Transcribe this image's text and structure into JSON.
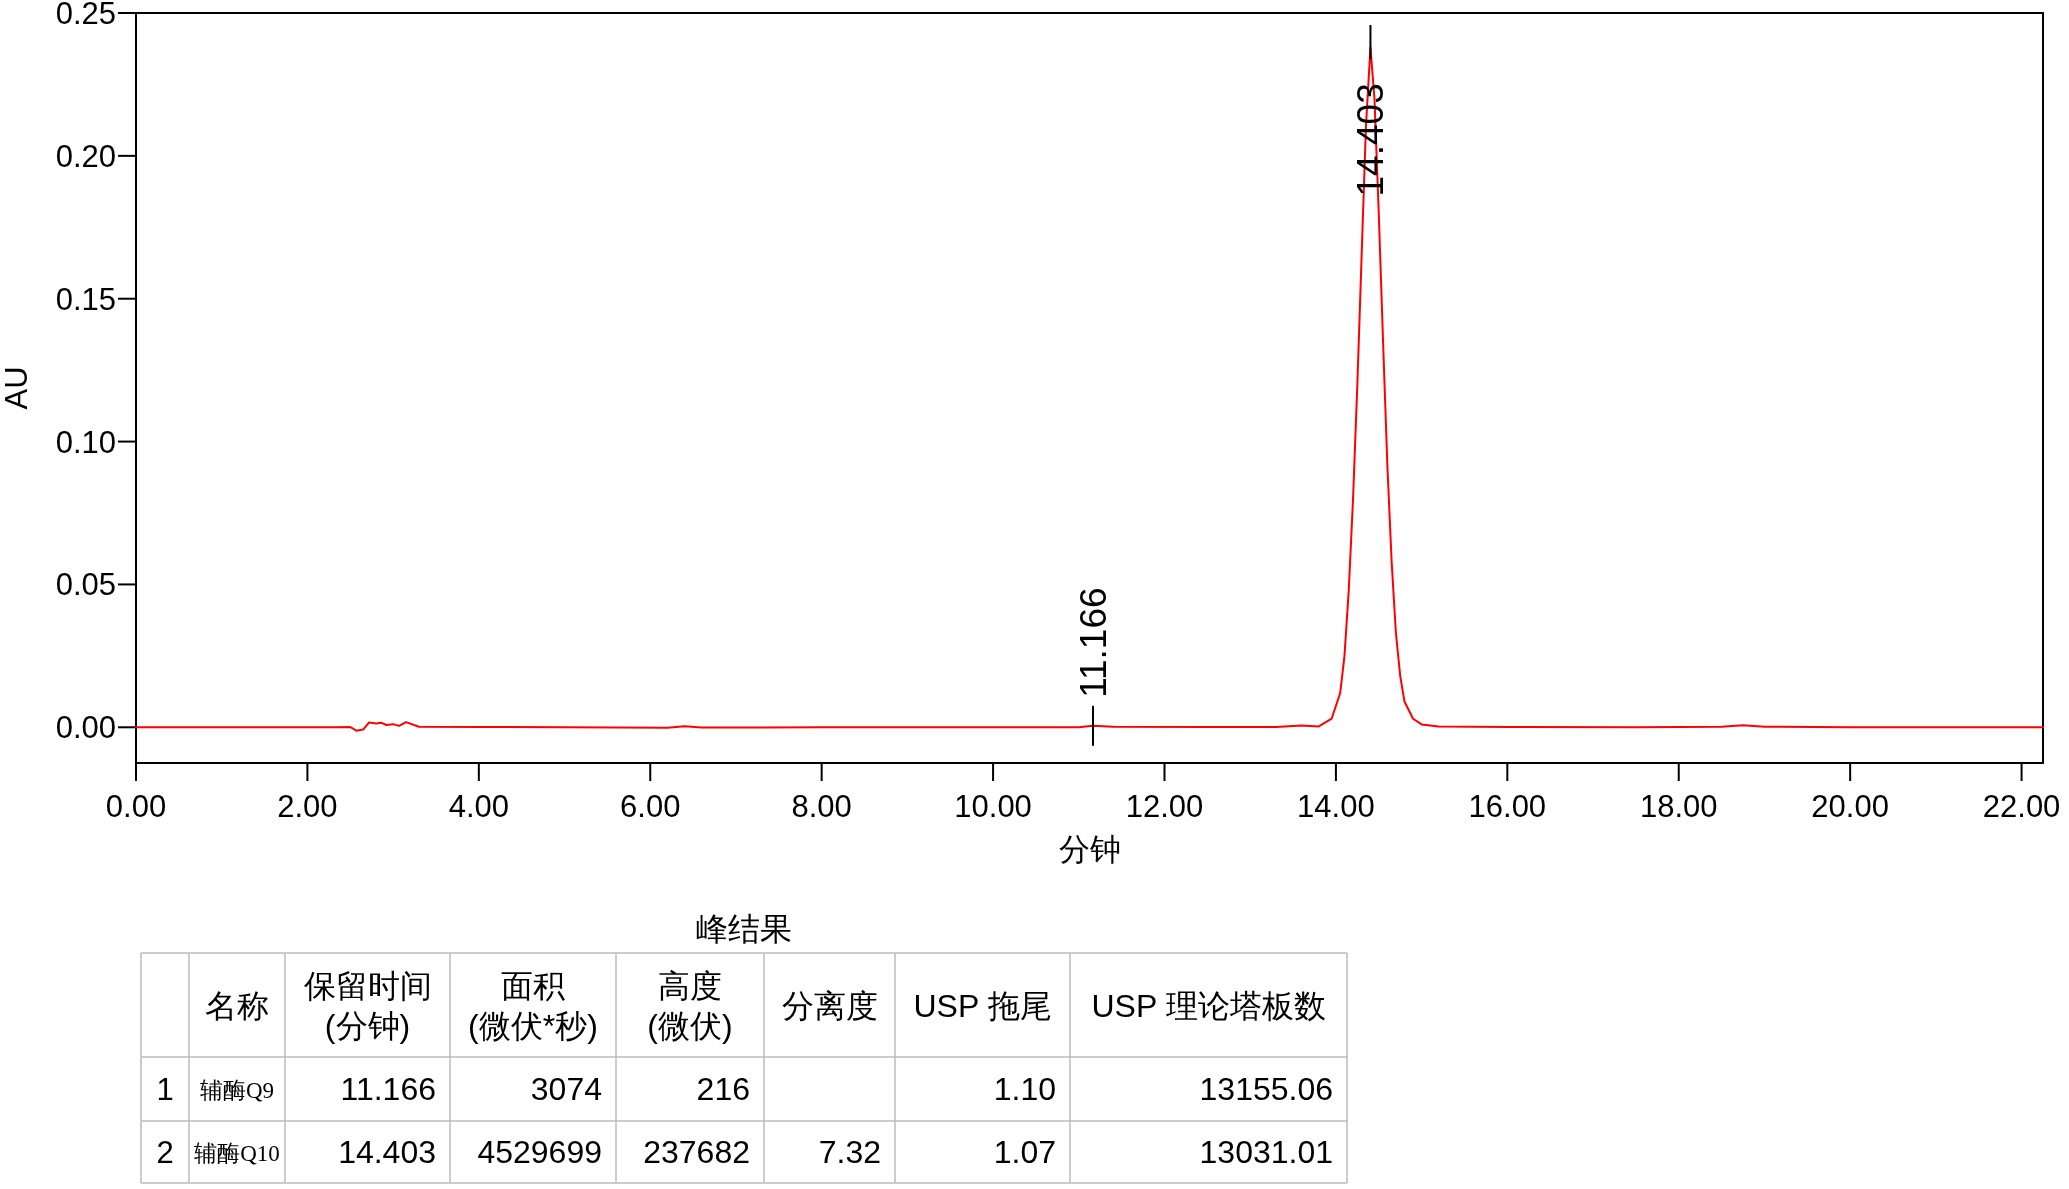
{
  "chart_data": [
    {
      "type": "line",
      "xlabel": "分钟",
      "ylabel": "AU",
      "color": "#ff0000",
      "x": [
        0,
        1.5,
        2.3,
        2.5,
        2.57,
        2.65,
        2.72,
        2.8,
        2.86,
        2.92,
        3.0,
        3.07,
        3.15,
        3.3,
        4.0,
        5.0,
        6.2,
        6.4,
        6.6,
        8.0,
        10.0,
        11.0,
        11.166,
        11.4,
        12.5,
        13.3,
        13.6,
        13.8,
        13.95,
        14.05,
        14.1,
        14.15,
        14.2,
        14.25,
        14.3,
        14.35,
        14.403,
        14.45,
        14.5,
        14.55,
        14.6,
        14.65,
        14.7,
        14.75,
        14.8,
        14.9,
        15.0,
        15.2,
        16.0,
        17.5,
        18.5,
        18.75,
        19.0,
        20.0,
        22.25
      ],
      "values": [
        0,
        0,
        0,
        0.0001,
        -0.0012,
        -0.0008,
        0.0017,
        0.0013,
        0.0016,
        0.0008,
        0.0011,
        0.0005,
        0.0018,
        0.0002,
        0.0001,
        0,
        -0.0002,
        0.0004,
        -0.0001,
        0,
        0,
        0,
        0.0005,
        0.0002,
        0.0001,
        0.0001,
        0.0006,
        0.0003,
        0.003,
        0.012,
        0.025,
        0.048,
        0.08,
        0.12,
        0.165,
        0.21,
        0.238,
        0.22,
        0.18,
        0.135,
        0.092,
        0.058,
        0.033,
        0.018,
        0.009,
        0.003,
        0.001,
        0.0003,
        0.0001,
        0,
        0.0002,
        0.0007,
        0.0002,
        0,
        0
      ],
      "xlim": [
        0,
        22.25
      ],
      "ylim": [
        -0.0125,
        0.25
      ],
      "xticks": [
        {
          "value": 0,
          "label": "0.00"
        },
        {
          "value": 2,
          "label": "2.00"
        },
        {
          "value": 4,
          "label": "4.00"
        },
        {
          "value": 6,
          "label": "6.00"
        },
        {
          "value": 8,
          "label": "8.00"
        },
        {
          "value": 10,
          "label": "10.00"
        },
        {
          "value": 12,
          "label": "12.00"
        },
        {
          "value": 14,
          "label": "14.00"
        },
        {
          "value": 16,
          "label": "16.00"
        },
        {
          "value": 18,
          "label": "18.00"
        },
        {
          "value": 20,
          "label": "20.00"
        },
        {
          "value": 22,
          "label": "22.00"
        }
      ],
      "yticks": [
        {
          "value": 0,
          "label": "0.00"
        },
        {
          "value": 0.05,
          "label": "0.05"
        },
        {
          "value": 0.1,
          "label": "0.10"
        },
        {
          "value": 0.15,
          "label": "0.15"
        },
        {
          "value": 0.2,
          "label": "0.20"
        },
        {
          "value": 0.25,
          "label": "0.25"
        }
      ],
      "annotations": [
        {
          "text": "11.166",
          "x": 11.166,
          "y": 0.0005
        },
        {
          "text": "14.403",
          "x": 14.403,
          "y": 0.238
        }
      ]
    },
    {
      "type": "other",
      "title": "峰结果",
      "categories": [
        null,
        "名称",
        "保留时间\n(分钟)",
        "面积\n(微伏*秒)",
        "高度\n(微伏)",
        "分离度",
        "USP 拖尾",
        "USP 理论塔板数"
      ],
      "annotations": [
        "1",
        "辅酶Q9",
        "11.166",
        "3074",
        "216",
        null,
        "1.10",
        "13155.06",
        "2",
        "辅酶Q10",
        "14.403",
        "4529699",
        "237682",
        "7.32",
        "1.07",
        "13031.01"
      ]
    }
  ]
}
